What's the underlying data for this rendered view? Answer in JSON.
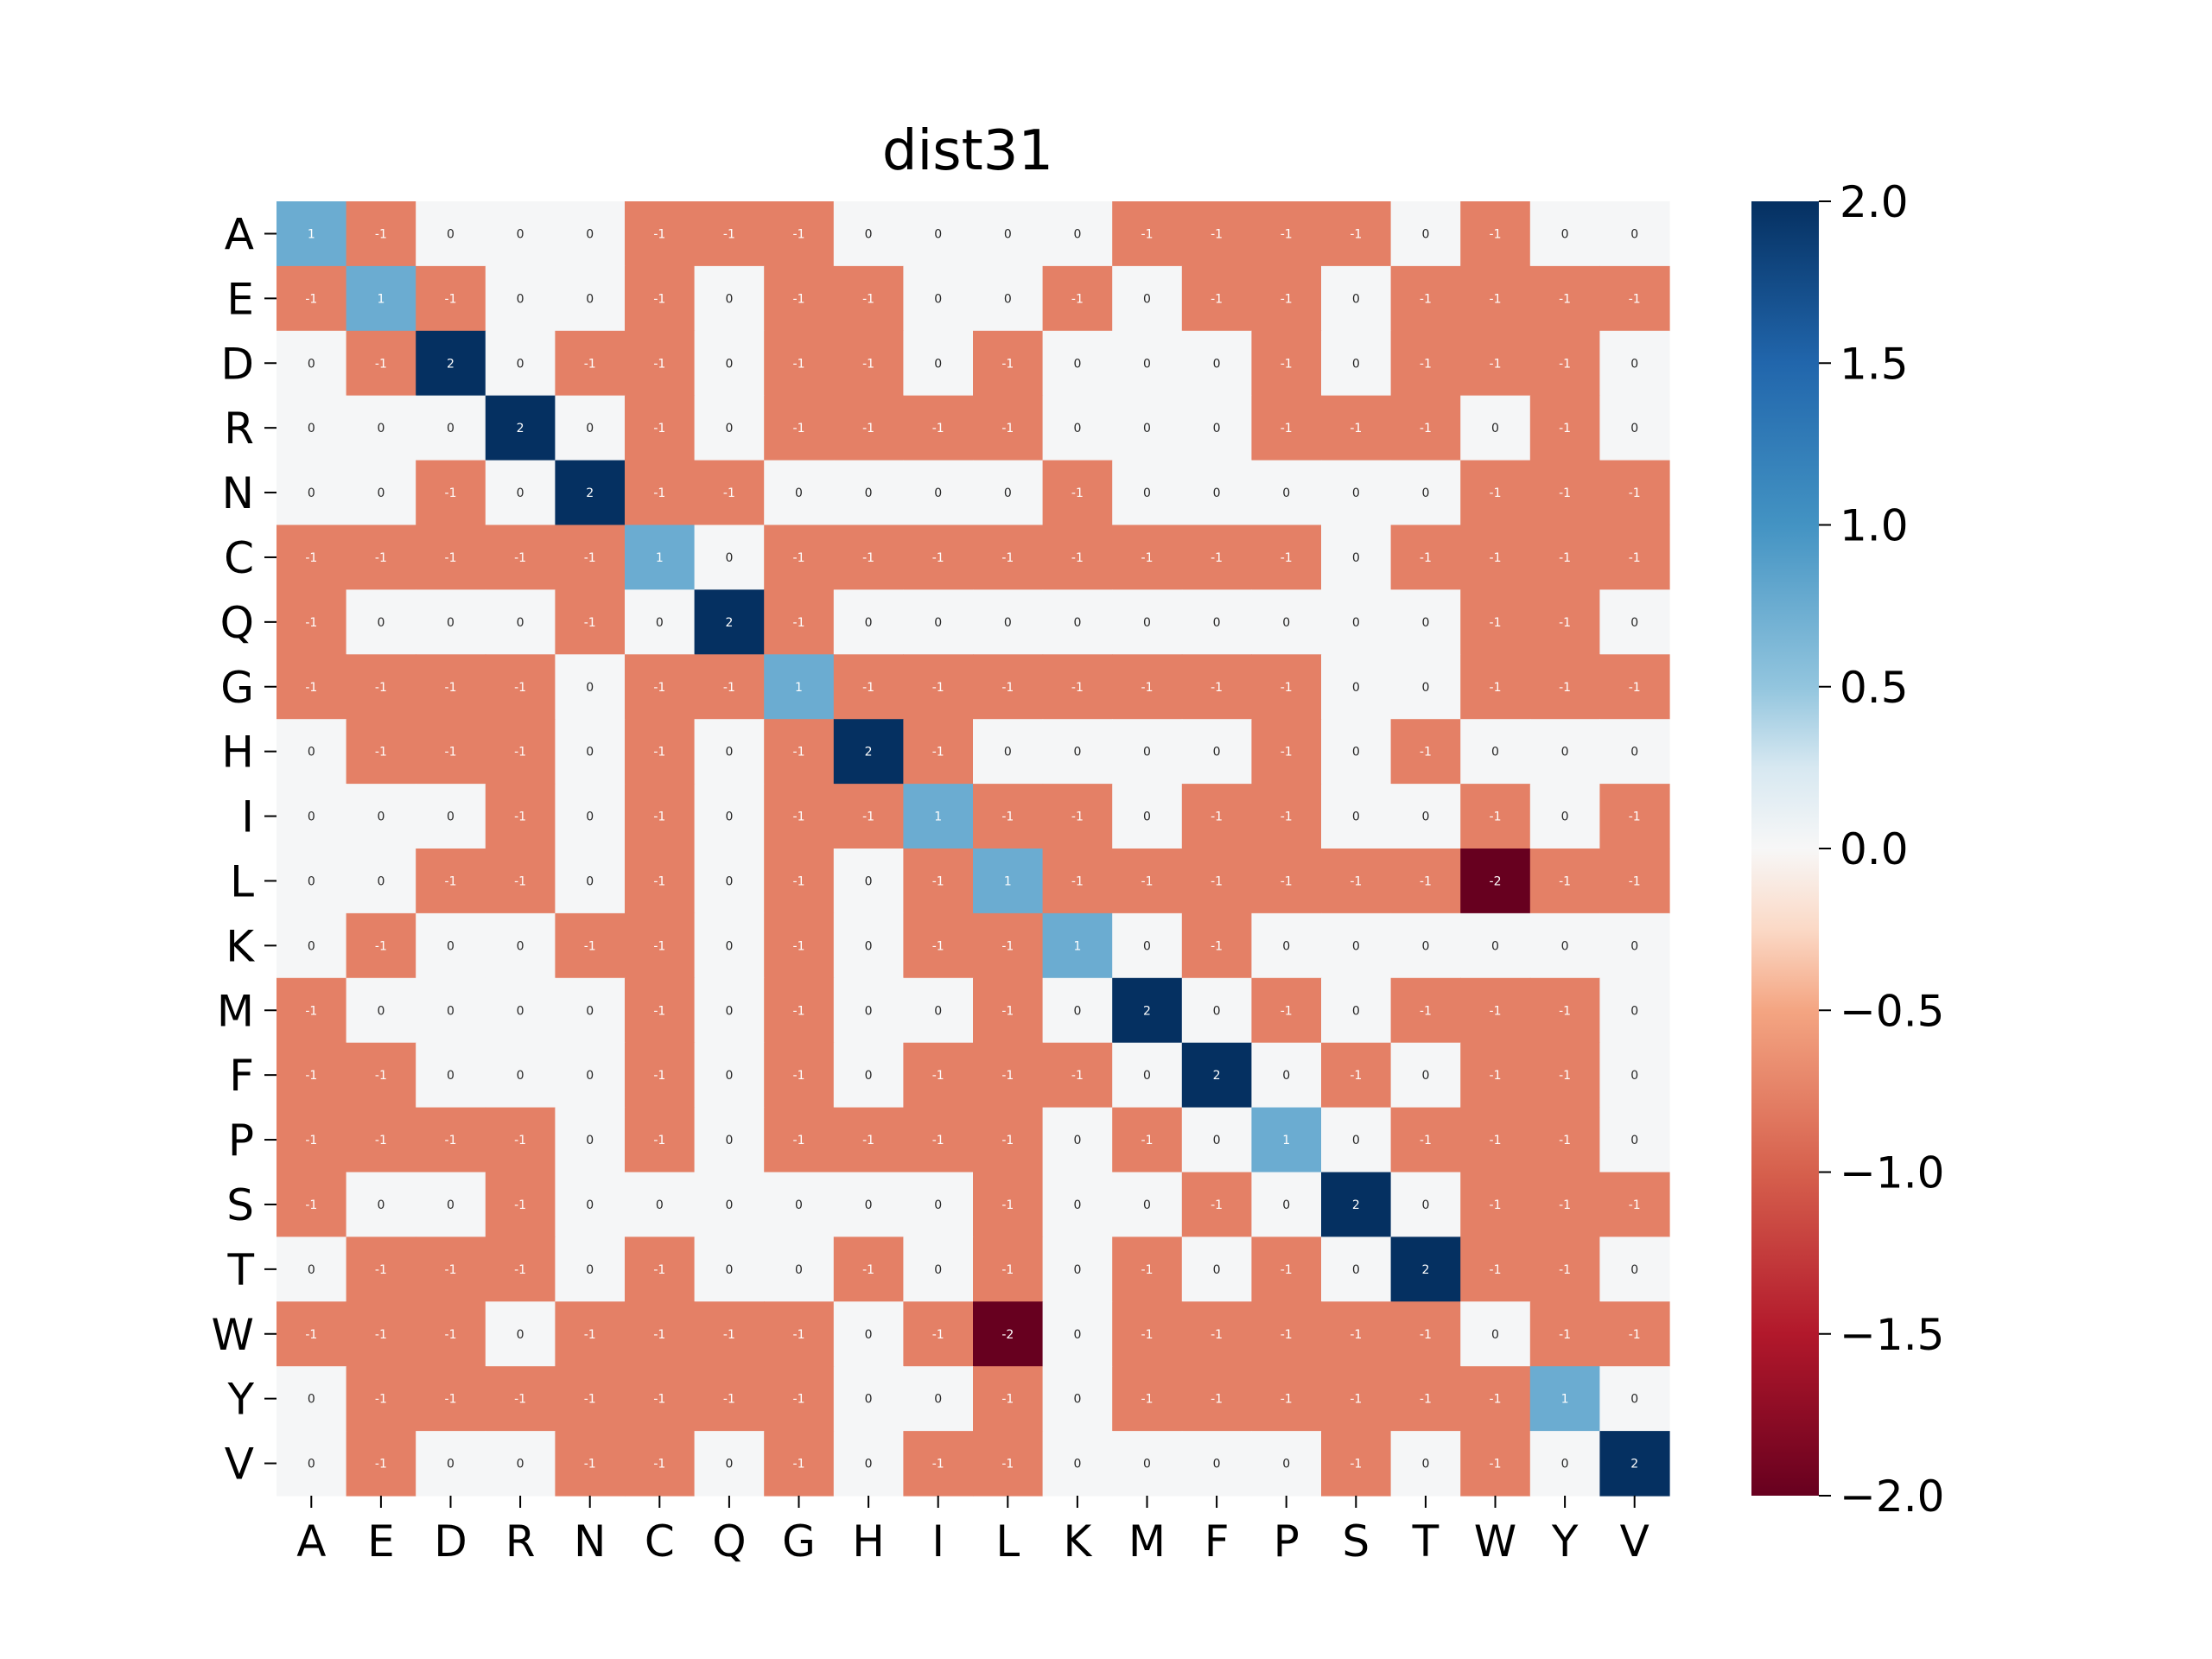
{
  "chart_data": {
    "type": "heatmap",
    "title": "dist31",
    "xlabel": "",
    "ylabel": "",
    "x_categories": [
      "A",
      "E",
      "D",
      "R",
      "N",
      "C",
      "Q",
      "G",
      "H",
      "I",
      "L",
      "K",
      "M",
      "F",
      "P",
      "S",
      "T",
      "W",
      "Y",
      "V"
    ],
    "y_categories": [
      "A",
      "E",
      "D",
      "R",
      "N",
      "C",
      "Q",
      "G",
      "H",
      "I",
      "L",
      "K",
      "M",
      "F",
      "P",
      "S",
      "T",
      "W",
      "Y",
      "V"
    ],
    "values": [
      [
        1,
        -1,
        0,
        0,
        0,
        -1,
        -1,
        -1,
        0,
        0,
        0,
        0,
        -1,
        -1,
        -1,
        -1,
        0,
        -1,
        0,
        0
      ],
      [
        -1,
        1,
        -1,
        0,
        0,
        -1,
        0,
        -1,
        -1,
        0,
        0,
        -1,
        0,
        -1,
        -1,
        0,
        -1,
        -1,
        -1,
        -1
      ],
      [
        0,
        -1,
        2,
        0,
        -1,
        -1,
        0,
        -1,
        -1,
        0,
        -1,
        0,
        0,
        0,
        -1,
        0,
        -1,
        -1,
        -1,
        0
      ],
      [
        0,
        0,
        0,
        2,
        0,
        -1,
        0,
        -1,
        -1,
        -1,
        -1,
        0,
        0,
        0,
        -1,
        -1,
        -1,
        0,
        -1,
        0
      ],
      [
        0,
        0,
        -1,
        0,
        2,
        -1,
        -1,
        0,
        0,
        0,
        0,
        -1,
        0,
        0,
        0,
        0,
        0,
        -1,
        -1,
        -1
      ],
      [
        -1,
        -1,
        -1,
        -1,
        -1,
        1,
        0,
        -1,
        -1,
        -1,
        -1,
        -1,
        -1,
        -1,
        -1,
        0,
        -1,
        -1,
        -1,
        -1
      ],
      [
        -1,
        0,
        0,
        0,
        -1,
        0,
        2,
        -1,
        0,
        0,
        0,
        0,
        0,
        0,
        0,
        0,
        0,
        -1,
        -1,
        0
      ],
      [
        -1,
        -1,
        -1,
        -1,
        0,
        -1,
        -1,
        1,
        -1,
        -1,
        -1,
        -1,
        -1,
        -1,
        -1,
        0,
        0,
        -1,
        -1,
        -1
      ],
      [
        0,
        -1,
        -1,
        -1,
        0,
        -1,
        0,
        -1,
        2,
        -1,
        0,
        0,
        0,
        0,
        -1,
        0,
        -1,
        0,
        0,
        0
      ],
      [
        0,
        0,
        0,
        -1,
        0,
        -1,
        0,
        -1,
        -1,
        1,
        -1,
        -1,
        0,
        -1,
        -1,
        0,
        0,
        -1,
        0,
        -1
      ],
      [
        0,
        0,
        -1,
        -1,
        0,
        -1,
        0,
        -1,
        0,
        -1,
        1,
        -1,
        -1,
        -1,
        -1,
        -1,
        -1,
        -2,
        -1,
        -1
      ],
      [
        0,
        -1,
        0,
        0,
        -1,
        -1,
        0,
        -1,
        0,
        -1,
        -1,
        1,
        0,
        -1,
        0,
        0,
        0,
        0,
        0,
        0
      ],
      [
        -1,
        0,
        0,
        0,
        0,
        -1,
        0,
        -1,
        0,
        0,
        -1,
        0,
        2,
        0,
        -1,
        0,
        -1,
        -1,
        -1,
        0
      ],
      [
        -1,
        -1,
        0,
        0,
        0,
        -1,
        0,
        -1,
        0,
        -1,
        -1,
        -1,
        0,
        2,
        0,
        -1,
        0,
        -1,
        -1,
        0
      ],
      [
        -1,
        -1,
        -1,
        -1,
        0,
        -1,
        0,
        -1,
        -1,
        -1,
        -1,
        0,
        -1,
        0,
        1,
        0,
        -1,
        -1,
        -1,
        0
      ],
      [
        -1,
        0,
        0,
        -1,
        0,
        0,
        0,
        0,
        0,
        0,
        -1,
        0,
        0,
        -1,
        0,
        2,
        0,
        -1,
        -1,
        -1
      ],
      [
        0,
        -1,
        -1,
        -1,
        0,
        -1,
        0,
        0,
        -1,
        0,
        -1,
        0,
        -1,
        0,
        -1,
        0,
        2,
        -1,
        -1,
        0
      ],
      [
        -1,
        -1,
        -1,
        0,
        -1,
        -1,
        -1,
        -1,
        0,
        -1,
        -2,
        0,
        -1,
        -1,
        -1,
        -1,
        -1,
        0,
        -1,
        -1
      ],
      [
        0,
        -1,
        -1,
        -1,
        -1,
        -1,
        -1,
        -1,
        0,
        0,
        -1,
        0,
        -1,
        -1,
        -1,
        -1,
        -1,
        -1,
        1,
        0
      ],
      [
        0,
        -1,
        0,
        0,
        -1,
        -1,
        0,
        -1,
        0,
        -1,
        -1,
        0,
        0,
        0,
        0,
        -1,
        0,
        -1,
        0,
        2
      ]
    ],
    "colorbar": {
      "vmin": -2.0,
      "vmax": 2.0,
      "ticks": [
        "2.0",
        "1.5",
        "1.0",
        "0.5",
        "0.0",
        "−0.5",
        "−1.0",
        "−1.5",
        "−2.0"
      ],
      "tick_values": [
        2.0,
        1.5,
        1.0,
        0.5,
        0.0,
        -0.5,
        -1.0,
        -1.5,
        -2.0
      ]
    },
    "colors": {
      "-2": "#67001f",
      "-1": "#e48066",
      "0": "#f5f6f7",
      "1": "#6bacd1",
      "2": "#053061"
    },
    "colormap": "RdBu",
    "annotations": true,
    "grid": false
  }
}
